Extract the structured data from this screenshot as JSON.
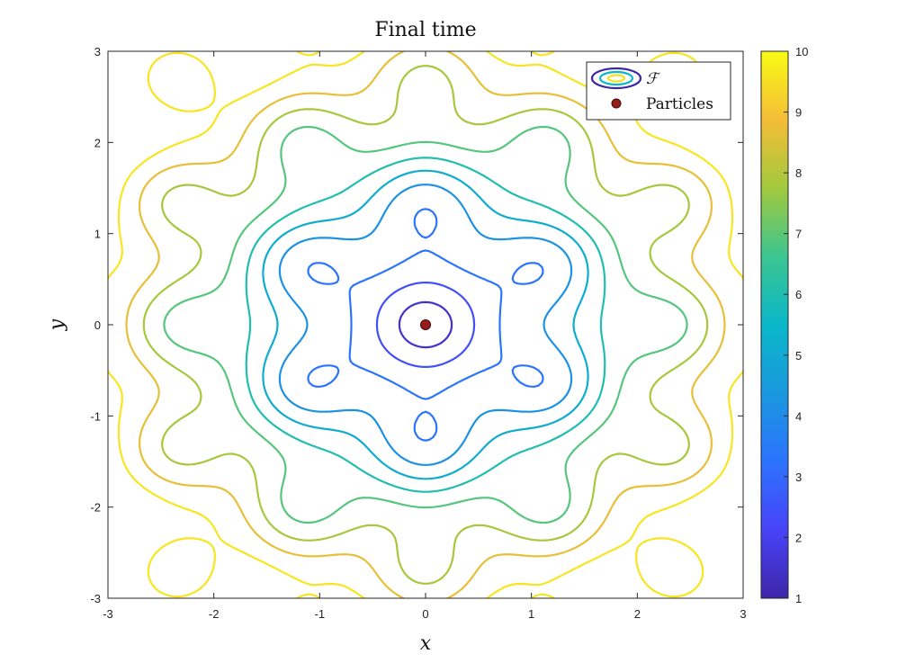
{
  "chart_data": {
    "type": "contour",
    "title": "Final time",
    "xlabel": "x",
    "ylabel": "y",
    "xlim": [
      -3,
      3
    ],
    "ylim": [
      -3,
      3
    ],
    "x_ticks": [
      "-3",
      "-2",
      "-1",
      "0",
      "1",
      "2",
      "3"
    ],
    "y_ticks": [
      "-3",
      "-2",
      "-1",
      "0",
      "1",
      "2",
      "3"
    ],
    "colorbar": {
      "colormap": "parula",
      "range": [
        1,
        10
      ],
      "ticks": [
        "1",
        "2",
        "3",
        "4",
        "5",
        "6",
        "7",
        "8",
        "9",
        "10"
      ]
    },
    "contour_levels": [
      1.5,
      2.4,
      3.3,
      4.2,
      5.1,
      6.0,
      6.9,
      7.8,
      8.7,
      9.6
    ],
    "legend": {
      "placement": "top-right",
      "entries": [
        {
          "label": "ℱ",
          "kind": "contour"
        },
        {
          "label": "Particles",
          "kind": "marker",
          "color": "#9b1b1b"
        }
      ]
    },
    "particles": [
      {
        "x": 0.0,
        "y": 0.0
      }
    ],
    "grid": false
  }
}
